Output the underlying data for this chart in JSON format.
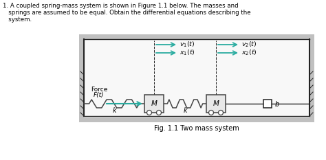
{
  "caption": "Fig. 1.1 Two mass system",
  "background_color": "#ffffff",
  "outer_box_color": "#b0b0b0",
  "inner_bg": "#f0f0f0",
  "teal_color": "#2aaca0",
  "dark_color": "#222222",
  "mass_color": "#e8e8e8",
  "mass_border": "#444444",
  "spring_color": "#444444",
  "line1": "1. A coupled spring-mass system is shown in Figure 1.1 below. The masses and",
  "line2": "   springs are assumed to be equal. Obtain the differential equations describing the",
  "line3": "   system."
}
